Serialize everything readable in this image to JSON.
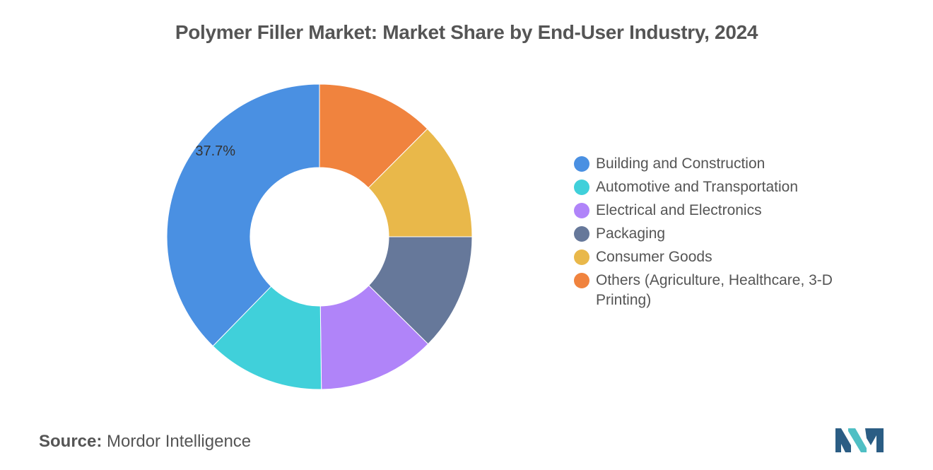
{
  "chart_data": {
    "type": "pie",
    "title": "Polymer Filler Market: Market Share by End-User Industry, 2024",
    "categories": [
      "Building and Construction",
      "Automotive and Transportation",
      "Electrical and Electronics",
      "Packaging",
      "Consumer Goods",
      "Others (Agriculture, Healthcare, 3-D Printing)"
    ],
    "values": [
      37.7,
      12.5,
      12.4,
      12.4,
      12.5,
      12.5
    ],
    "colors": [
      "#4a90e2",
      "#40d0da",
      "#b084f9",
      "#66789a",
      "#e9b84a",
      "#f0833e"
    ],
    "data_labels": [
      "37.7%",
      "",
      "",
      "",
      "",
      ""
    ],
    "donut": true,
    "legend_position": "right"
  },
  "source": {
    "label": "Source:",
    "value": "Mordor Intelligence"
  },
  "logo": {
    "icon": "mordor-intelligence-logo-icon",
    "colors": [
      "#2b5d84",
      "#4fbfc4"
    ]
  }
}
